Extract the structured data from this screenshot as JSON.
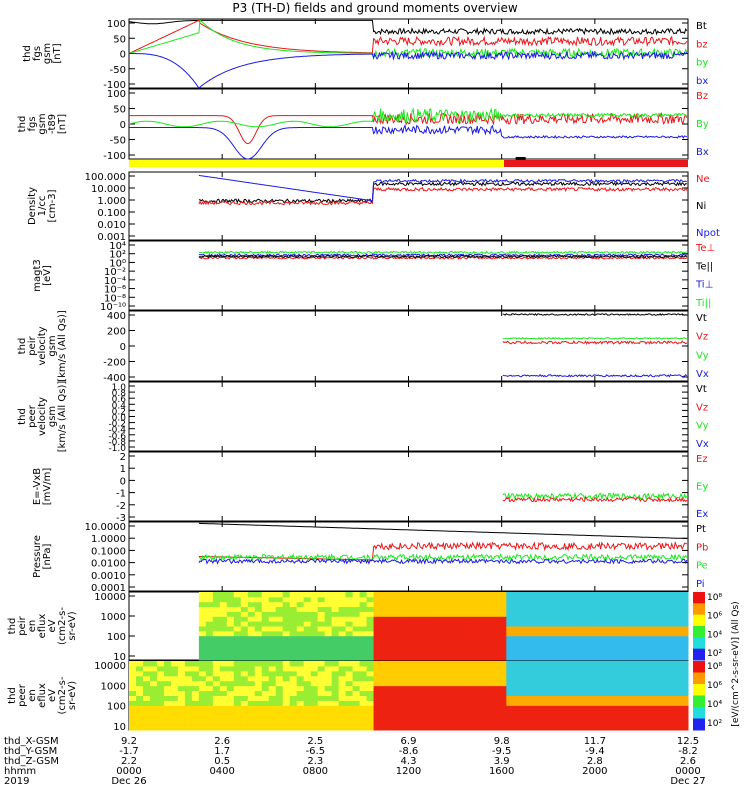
{
  "title": "P3 (TH-D) fields and ground moments overview",
  "colors": {
    "black": "#000000",
    "red": "#e8171b",
    "green": "#19e81b",
    "blue": "#1a1ae0",
    "yellow": "#ffff00",
    "bar_red": "#e8171b"
  },
  "chart_data": [
    {
      "type": "line",
      "panel": "fgs_gsm",
      "ylabel": [
        "thd",
        "fgs",
        "gsm",
        "[nT]"
      ],
      "ylim": [
        -100,
        100
      ],
      "yticks": [
        "100",
        "50",
        "0",
        "-50",
        "-100"
      ],
      "legend": [
        {
          "text": "Bt",
          "color": "black"
        },
        {
          "text": "bz",
          "color": "red"
        },
        {
          "text": "by",
          "color": "green"
        },
        {
          "text": "bx",
          "color": "blue"
        }
      ]
    },
    {
      "type": "line",
      "panel": "fgs_gsm_t89",
      "ylabel": [
        "thd",
        "fgs",
        "gsm",
        "-t89",
        "[nT]"
      ],
      "ylim": [
        -120,
        120
      ],
      "yticks": [
        "100",
        "50",
        "0",
        "-50",
        "-100"
      ],
      "legend": [
        {
          "text": "Bz",
          "color": "red"
        },
        {
          "text": "By",
          "color": "green"
        },
        {
          "text": "Bx",
          "color": "blue"
        }
      ]
    },
    {
      "type": "line",
      "panel": "density",
      "ylabel": [
        "Density",
        "1/cc",
        "[cm-3]"
      ],
      "ylim": [
        0.001,
        100
      ],
      "scale": "log",
      "yticks": [
        "100.000",
        "10.000",
        "1.000",
        "0.100",
        "0.010",
        "0.001"
      ],
      "legend": [
        {
          "text": "Ne",
          "color": "red"
        },
        {
          "text": "Ni",
          "color": "black"
        },
        {
          "text": "Npot",
          "color": "blue"
        }
      ]
    },
    {
      "type": "line",
      "panel": "temperature",
      "ylabel": [
        "magt3",
        "[eV]"
      ],
      "scale": "log",
      "yticks": [
        "10⁴",
        "10²",
        "10⁰",
        "10⁻²",
        "10⁻⁴",
        "10⁻⁶",
        "10⁻⁸",
        "10⁻¹⁰"
      ],
      "legend": [
        {
          "text": "Te⊥",
          "color": "red"
        },
        {
          "text": "Te||",
          "color": "black"
        },
        {
          "text": "Ti⊥",
          "color": "blue"
        },
        {
          "text": "Ti||",
          "color": "green"
        }
      ]
    },
    {
      "type": "line",
      "panel": "peir_velocity",
      "ylabel": [
        "thd",
        "peir",
        "velocity",
        "gsm",
        "[km/s (All Qs)]"
      ],
      "ylim": [
        -400,
        400
      ],
      "yticks": [
        "400",
        "200",
        "0",
        "-200",
        "-400"
      ],
      "legend": [
        {
          "text": "Vt",
          "color": "black"
        },
        {
          "text": "Vz",
          "color": "red"
        },
        {
          "text": "Vy",
          "color": "green"
        },
        {
          "text": "Vx",
          "color": "blue"
        }
      ]
    },
    {
      "type": "line",
      "panel": "peer_velocity",
      "ylabel": [
        "thd",
        "peer",
        "velocity",
        "gsm",
        "[km/s (All Qs)]"
      ],
      "ylim": [
        -1.0,
        1.0
      ],
      "yticks": [
        "1.0",
        "0.8",
        "0.6",
        "0.4",
        "0.2",
        "0.0",
        "-0.2",
        "-0.4",
        "-0.6",
        "-0.8",
        "-1.0"
      ],
      "legend": [
        {
          "text": "Vt",
          "color": "black"
        },
        {
          "text": "Vz",
          "color": "red"
        },
        {
          "text": "Vy",
          "color": "green"
        },
        {
          "text": "Vx",
          "color": "blue"
        }
      ]
    },
    {
      "type": "line",
      "panel": "efield",
      "ylabel": [
        "E=-VxB",
        "[mV/m]"
      ],
      "ylim": [
        -3,
        3
      ],
      "yticks": [
        "2",
        "1",
        "0",
        "-1",
        "-2",
        "-3"
      ],
      "legend": [
        {
          "text": "Ez",
          "color": "red"
        },
        {
          "text": "Ey",
          "color": "green"
        },
        {
          "text": "Ex",
          "color": "blue"
        }
      ]
    },
    {
      "type": "line",
      "panel": "pressure",
      "ylabel": [
        "Pressure",
        "[nPa]"
      ],
      "scale": "log",
      "yticks": [
        "10.0000",
        "1.0000",
        "0.1000",
        "0.0100",
        "0.0010",
        "0.0001"
      ],
      "legend": [
        {
          "text": "Pt",
          "color": "black"
        },
        {
          "text": "Pb",
          "color": "red"
        },
        {
          "text": "Pe",
          "color": "green"
        },
        {
          "text": "Pi",
          "color": "blue"
        }
      ]
    },
    {
      "type": "heatmap",
      "panel": "peir_eflux",
      "ylabel": [
        "thd",
        "peir",
        "en",
        "eflux",
        "eV",
        "(cm2-s-",
        "sr-eV)"
      ],
      "scale": "log",
      "yticks": [
        "10000",
        "1000",
        "100",
        "10"
      ]
    },
    {
      "type": "heatmap",
      "panel": "peer_eflux",
      "ylabel": [
        "thd",
        "peer",
        "en",
        "eflux",
        "eV",
        "(cm2-s-",
        "sr-eV)"
      ],
      "scale": "log",
      "yticks": [
        "10000",
        "1000",
        "100",
        "10"
      ]
    }
  ],
  "colorbar": {
    "label": "[eV/(cm^2-s-sr-eV)] (All Qs)",
    "top_labels": [
      "10⁸",
      "10⁶",
      "10⁴",
      "10²"
    ],
    "bottom_labels": [
      "10⁸",
      "10⁶",
      "10⁴",
      "10²"
    ]
  },
  "bar": {
    "yellow_until_tick": 4.3,
    "red_from_tick": 4.3
  },
  "x_axis": {
    "row_labels": [
      "thd_X-GSM",
      "thd_Y-GSM",
      "thd_Z-GSM",
      "hhmm",
      "2019"
    ],
    "ticks": [
      {
        "x": [
          "9.2",
          "-1.7",
          "2.2"
        ],
        "hhmm": "0000",
        "date": "Dec 26"
      },
      {
        "x": [
          "2.6",
          "1.7",
          "0.5"
        ],
        "hhmm": "0400",
        "date": ""
      },
      {
        "x": [
          "2.5",
          "-6.5",
          "2.3"
        ],
        "hhmm": "0800",
        "date": ""
      },
      {
        "x": [
          "6.9",
          "-8.6",
          "4.3"
        ],
        "hhmm": "1200",
        "date": ""
      },
      {
        "x": [
          "9.8",
          "-9.5",
          "3.9"
        ],
        "hhmm": "1600",
        "date": ""
      },
      {
        "x": [
          "11.7",
          "-9.4",
          "2.8"
        ],
        "hhmm": "2000",
        "date": ""
      },
      {
        "x": [
          "12.5",
          "-8.2",
          "2.6"
        ],
        "hhmm": "0000",
        "date": "Dec 27"
      }
    ]
  }
}
